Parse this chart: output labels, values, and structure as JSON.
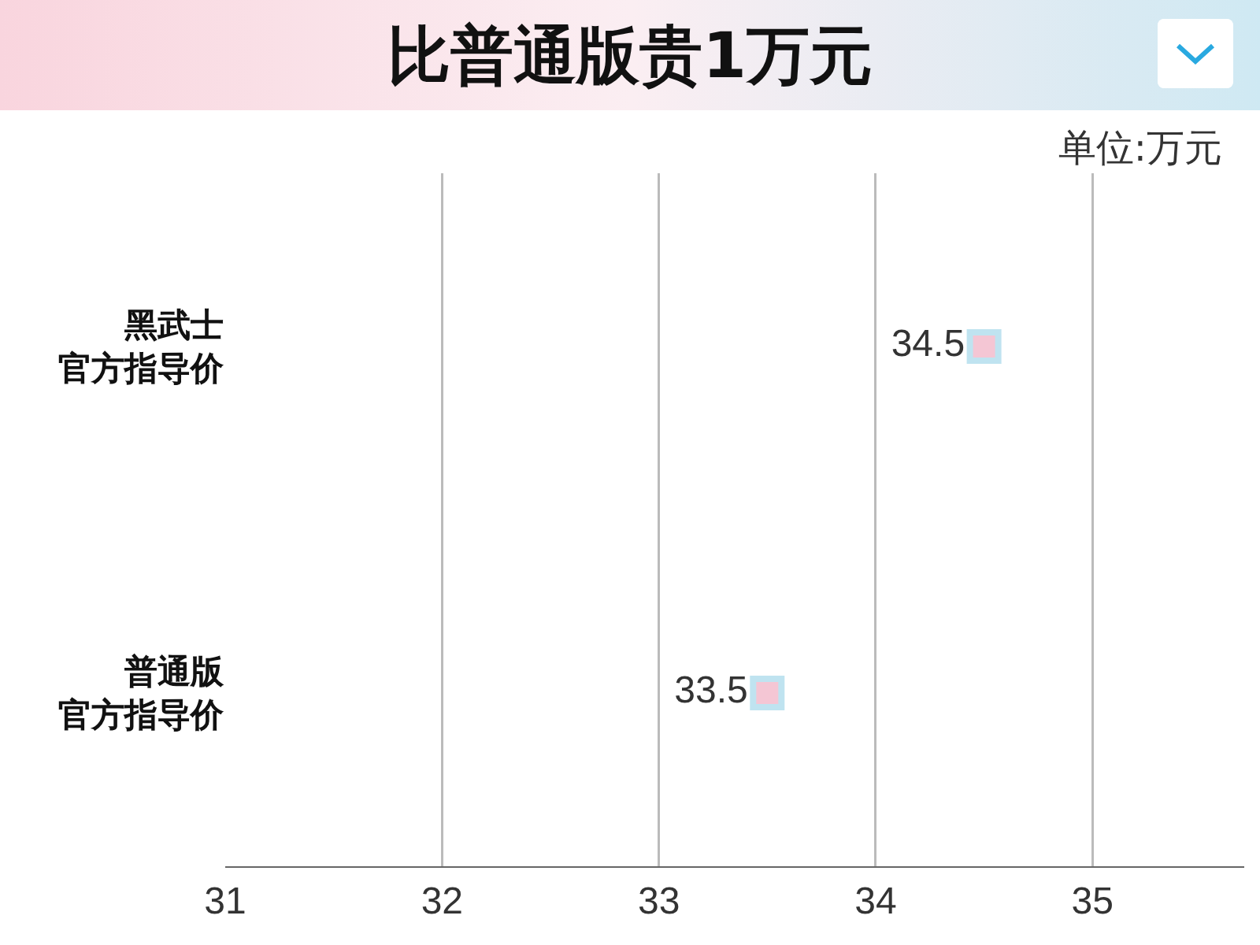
{
  "chart_data": {
    "type": "scatter",
    "orientation": "horizontal",
    "title": "比普通版贵1万元",
    "annotations": [
      "单位:万元"
    ],
    "categories": [
      "黑武士官方指导价",
      "普通版官方指导价"
    ],
    "values": [
      34.5,
      33.5
    ],
    "color": "#f4c6d4",
    "marker": "square",
    "data_labels": true,
    "xlim": [
      31,
      35.7
    ],
    "xticks": [
      31,
      32,
      33,
      34,
      35
    ],
    "grid": "x"
  }
}
